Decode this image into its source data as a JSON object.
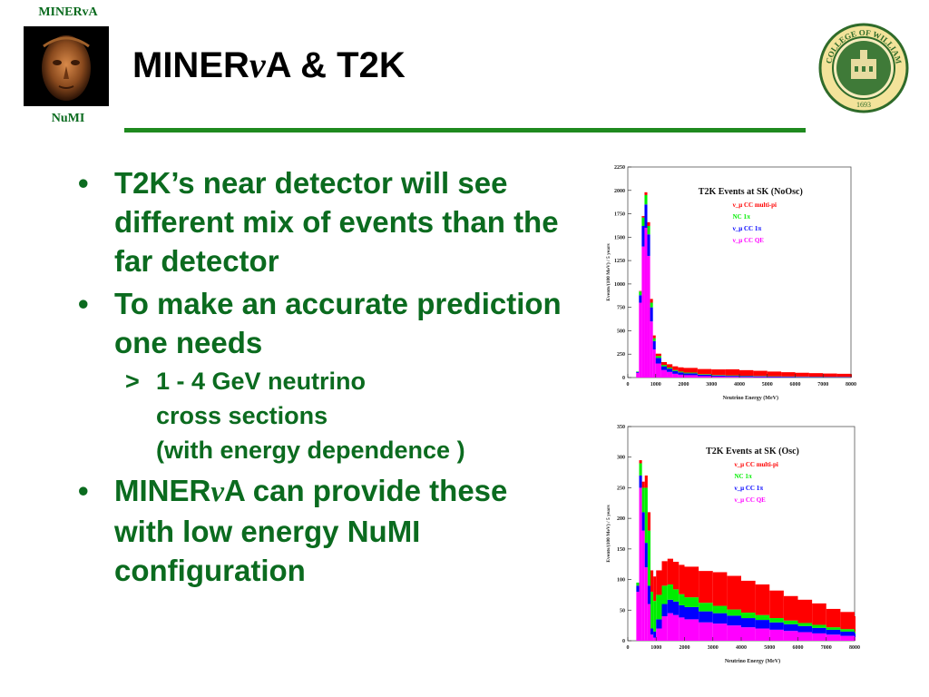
{
  "header": {
    "brand_top": "MINERvA",
    "brand_bottom": "NuMI",
    "title_pre": "MINER",
    "title_nu": "ν",
    "title_post": "A & T2K"
  },
  "bullets": {
    "b1": "T2K’s near detector will see different mix of events than the far detector",
    "b2": "To make an accurate prediction one needs",
    "b2_sub_line1": "1 - 4 GeV neutrino",
    "b2_sub_line2": "cross sections",
    "b2_sub_line3": "(with energy dependence )",
    "b3_pre": "MINER",
    "b3_nu": "ν",
    "b3_post": "A can provide these with low energy NuMI configuration",
    "bullet_glyph": "•",
    "sub_glyph": ">"
  },
  "colors": {
    "green_text": "#0b6b1f",
    "rule": "#1f8a1f",
    "cc_multi_pi": "#ff0000",
    "nc_1pi": "#00ee00",
    "cc_1pi": "#0000ff",
    "cc_qe": "#ff00ff",
    "tail_black": "#000000"
  },
  "chart_data": [
    {
      "type": "bar",
      "title": "T2K Events at SK (NoOsc)",
      "xlabel": "Neutrino Energy (MeV)",
      "ylabel": "Events/(100 MeV) / 5 years",
      "xlim": [
        0,
        8000
      ],
      "ylim": [
        0,
        2250
      ],
      "xticks": [
        "0",
        "1000",
        "2000",
        "3000",
        "4000",
        "5000",
        "6000",
        "7000",
        "8000"
      ],
      "yticks": [
        "0",
        "250",
        "500",
        "750",
        "1000",
        "1250",
        "1500",
        "1750",
        "2000",
        "2250"
      ],
      "legend": [
        "ν_μ CC multi-pi",
        "NC 1π",
        "ν_μ CC 1π",
        "ν_μ CC QE"
      ],
      "legend_placement": "top-right",
      "stacked": true,
      "x": [
        300,
        400,
        500,
        600,
        700,
        800,
        900,
        1000,
        1200,
        1400,
        1600,
        1800,
        2000,
        2500,
        3000,
        3500,
        4000,
        4500,
        5000,
        5500,
        6000,
        6500,
        7000,
        7500,
        8000
      ],
      "series": [
        {
          "name": "ν_μ CC QE",
          "values": [
            50,
            800,
            1400,
            1600,
            1300,
            600,
            300,
            150,
            80,
            60,
            40,
            30,
            25,
            15,
            10,
            8,
            6,
            5,
            4,
            3,
            3,
            2,
            2,
            2,
            1
          ]
        },
        {
          "name": "ν_μ CC 1π",
          "values": [
            10,
            80,
            220,
            250,
            230,
            150,
            90,
            60,
            40,
            35,
            30,
            25,
            20,
            15,
            12,
            10,
            9,
            8,
            7,
            6,
            5,
            5,
            4,
            4,
            3
          ]
        },
        {
          "name": "NC 1π",
          "values": [
            5,
            40,
            90,
            100,
            90,
            50,
            30,
            20,
            15,
            12,
            10,
            9,
            8,
            6,
            5,
            5,
            4,
            4,
            3,
            3,
            3,
            2,
            2,
            2,
            2
          ]
        },
        {
          "name": "ν_μ CC multi-pi",
          "values": [
            0,
            5,
            15,
            30,
            40,
            40,
            30,
            25,
            30,
            35,
            40,
            45,
            50,
            55,
            60,
            65,
            60,
            55,
            50,
            45,
            40,
            38,
            35,
            32,
            30
          ]
        }
      ]
    },
    {
      "type": "bar",
      "title": "T2K Events at SK (Osc)",
      "xlabel": "Neutrino Energy (MeV)",
      "ylabel": "Events/(100 MeV) / 5 years",
      "xlim": [
        0,
        8000
      ],
      "ylim": [
        0,
        350
      ],
      "xticks": [
        "0",
        "1000",
        "2000",
        "3000",
        "4000",
        "5000",
        "6000",
        "7000",
        "8000"
      ],
      "yticks": [
        "0",
        "50",
        "100",
        "150",
        "200",
        "250",
        "300",
        "350"
      ],
      "legend": [
        "ν_μ CC multi-pi",
        "NC 1π",
        "ν_μ CC 1π",
        "ν_μ CC QE"
      ],
      "legend_placement": "top-right",
      "stacked": true,
      "x": [
        300,
        400,
        500,
        600,
        700,
        800,
        900,
        1000,
        1200,
        1400,
        1600,
        1800,
        2000,
        2500,
        3000,
        3500,
        4000,
        4500,
        5000,
        5500,
        6000,
        6500,
        7000,
        7500,
        8000
      ],
      "series": [
        {
          "name": "ν_μ CC QE",
          "values": [
            80,
            250,
            180,
            120,
            60,
            10,
            5,
            20,
            40,
            45,
            42,
            38,
            35,
            30,
            28,
            25,
            22,
            20,
            18,
            16,
            14,
            12,
            10,
            8,
            6
          ]
        },
        {
          "name": "ν_μ CC 1π",
          "values": [
            10,
            20,
            30,
            40,
            30,
            10,
            10,
            15,
            20,
            22,
            22,
            20,
            20,
            18,
            17,
            16,
            15,
            14,
            12,
            11,
            10,
            9,
            8,
            7,
            6
          ]
        },
        {
          "name": "NC 1π",
          "values": [
            5,
            20,
            40,
            90,
            90,
            60,
            50,
            40,
            30,
            25,
            20,
            18,
            16,
            14,
            12,
            10,
            9,
            8,
            7,
            6,
            5,
            5,
            4,
            4,
            3
          ]
        },
        {
          "name": "ν_μ CC multi-pi",
          "values": [
            0,
            5,
            10,
            20,
            30,
            35,
            40,
            40,
            40,
            42,
            45,
            48,
            50,
            52,
            55,
            55,
            52,
            50,
            45,
            40,
            38,
            35,
            30,
            28,
            25
          ]
        }
      ]
    }
  ]
}
